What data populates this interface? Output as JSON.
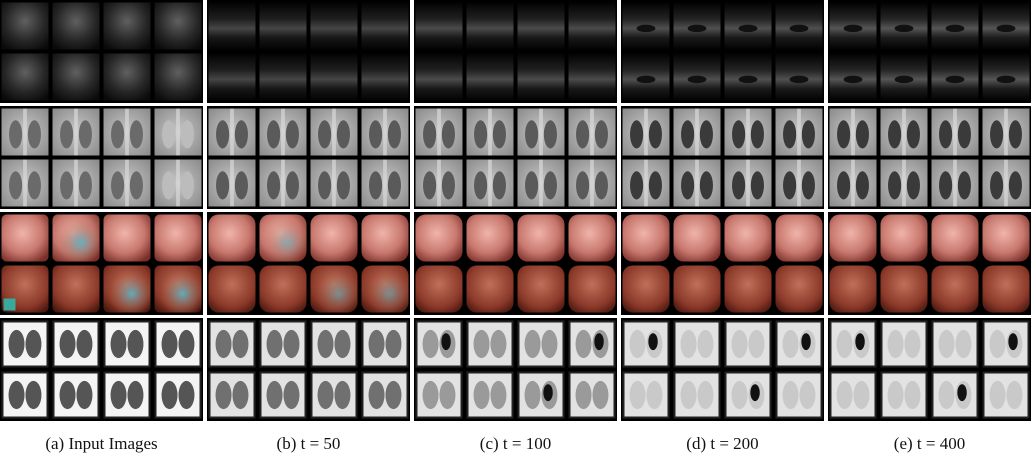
{
  "figure": {
    "captions": [
      "(a) Input Images",
      "(b) t = 50",
      "(c) t = 100",
      "(d) t = 200",
      "(e) t = 400"
    ]
  }
}
